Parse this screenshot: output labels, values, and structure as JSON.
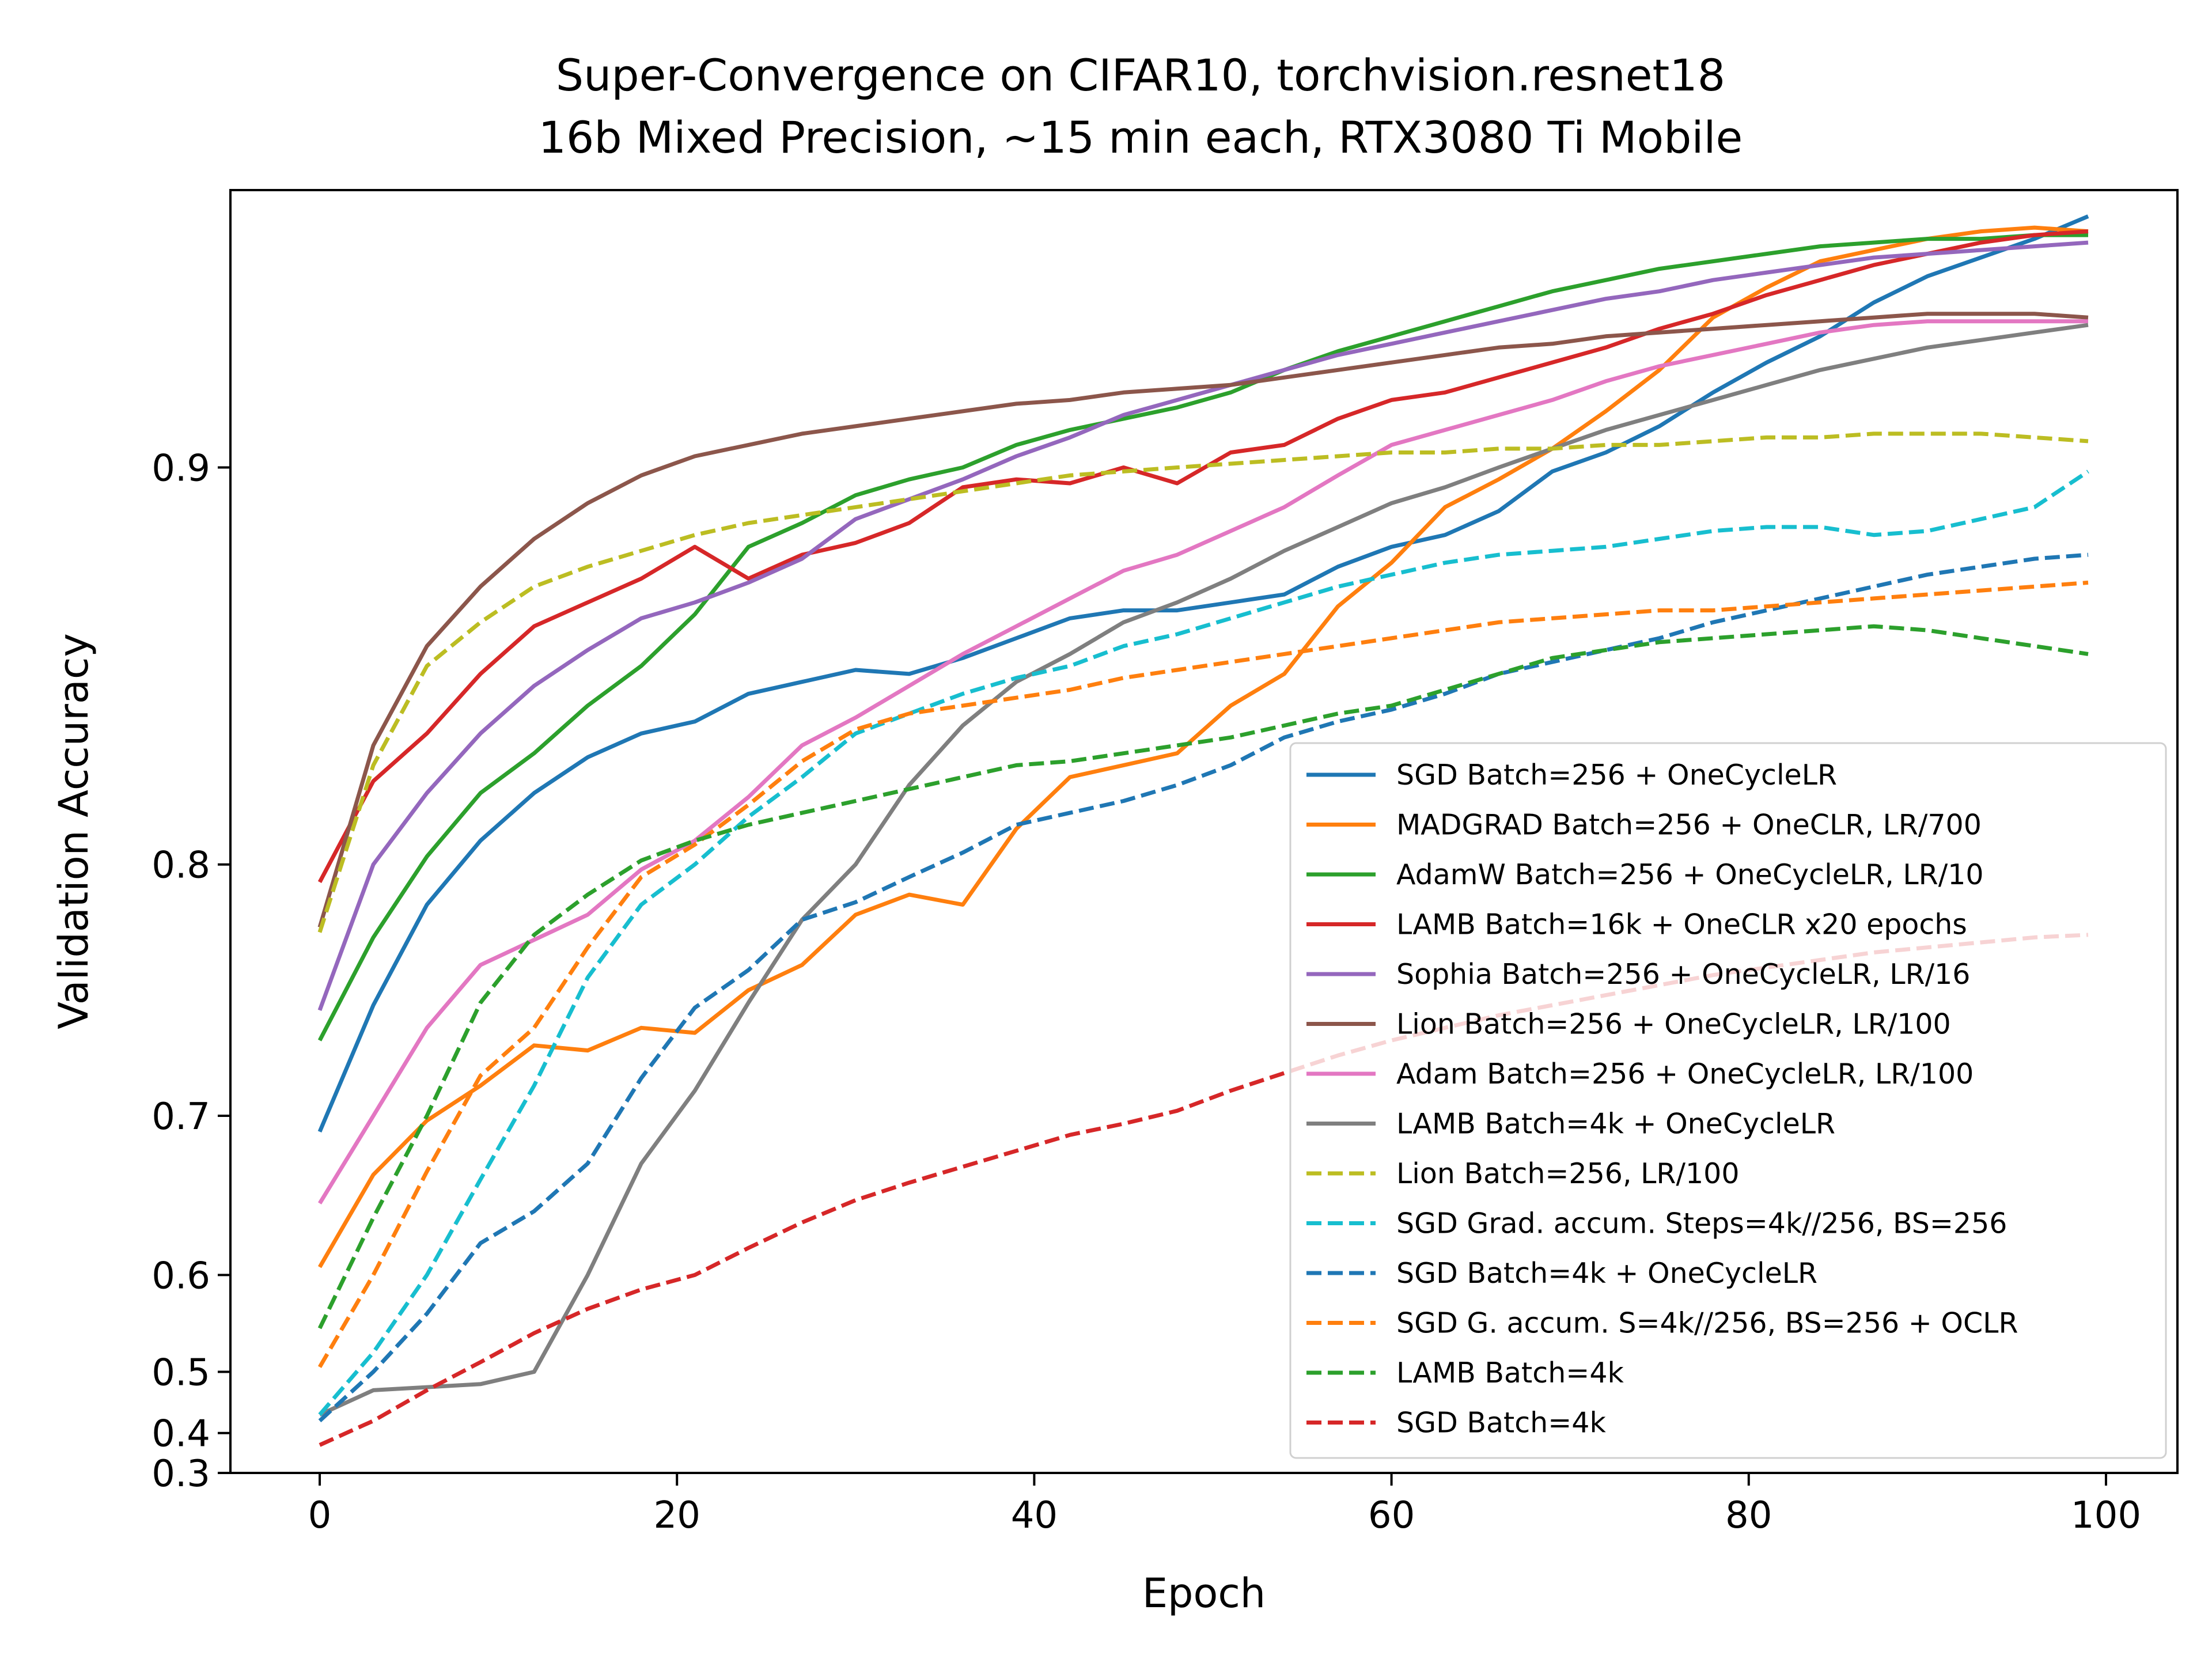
{
  "chart_data": {
    "type": "line",
    "title_lines": [
      "Super-Convergence on CIFAR10, torchvision.resnet18",
      "16b Mixed Precision, ~15 min each, RTX3080 Ti Mobile"
    ],
    "xlabel": "Epoch",
    "ylabel": "Validation Accuracy",
    "xlim": [
      -5,
      104
    ],
    "ylim": [
      0.3,
      0.974
    ],
    "y_scale": "function (axis stretched toward the top)",
    "grid": false,
    "legend_position": "lower-right",
    "x_ticks": [
      0,
      20,
      40,
      60,
      80,
      100
    ],
    "x_tick_labels": [
      "0",
      "20",
      "40",
      "60",
      "80",
      "100"
    ],
    "y_ticks": [
      0.3,
      0.4,
      0.5,
      0.6,
      0.7,
      0.8,
      0.9
    ],
    "y_tick_labels": [
      "0.3",
      "0.4",
      "0.5",
      "0.6",
      "0.7",
      "0.8",
      "0.9"
    ],
    "y_scale_anchors": [
      [
        0.3,
        0.3
      ],
      [
        0.4,
        0.4
      ],
      [
        0.5,
        0.5
      ],
      [
        0.6,
        0.6
      ],
      [
        0.7,
        0.7
      ],
      [
        0.8,
        0.8
      ],
      [
        0.9,
        0.9
      ],
      [
        0.974,
        0.974
      ]
    ],
    "y_scale_pixel_fraction": [
      0.0,
      0.0311,
      0.0788,
      0.1543,
      0.2784,
      0.4743,
      0.7838,
      1.0
    ],
    "series": [
      {
        "name": "SGD Batch=256 + OneCycleLR",
        "color": "#1f77b4",
        "dash": "solid",
        "x": [
          0,
          3,
          6,
          9,
          12,
          15,
          18,
          21,
          24,
          27,
          30,
          33,
          36,
          39,
          42,
          45,
          48,
          51,
          54,
          57,
          60,
          63,
          66,
          69,
          72,
          75,
          78,
          81,
          84,
          87,
          90,
          93,
          96,
          99
        ],
        "y": [
          0.69,
          0.744,
          0.784,
          0.806,
          0.818,
          0.827,
          0.833,
          0.836,
          0.843,
          0.846,
          0.849,
          0.848,
          0.852,
          0.857,
          0.862,
          0.864,
          0.864,
          0.866,
          0.868,
          0.875,
          0.88,
          0.883,
          0.889,
          0.899,
          0.904,
          0.911,
          0.92,
          0.928,
          0.935,
          0.944,
          0.951,
          0.956,
          0.961,
          0.967
        ]
      },
      {
        "name": "MADGRAD Batch=256 + OneCLR, LR/700",
        "color": "#ff7f0e",
        "dash": "solid",
        "x": [
          0,
          3,
          6,
          9,
          12,
          15,
          18,
          21,
          24,
          27,
          30,
          33,
          36,
          39,
          42,
          45,
          48,
          51,
          54,
          57,
          60,
          63,
          66,
          69,
          72,
          75,
          78,
          81,
          84,
          87,
          90,
          93,
          96,
          99
        ],
        "y": [
          0.605,
          0.663,
          0.697,
          0.712,
          0.728,
          0.726,
          0.735,
          0.733,
          0.75,
          0.76,
          0.78,
          0.788,
          0.784,
          0.809,
          0.822,
          0.825,
          0.828,
          0.84,
          0.848,
          0.865,
          0.876,
          0.89,
          0.897,
          0.905,
          0.915,
          0.926,
          0.94,
          0.948,
          0.955,
          0.958,
          0.961,
          0.963,
          0.964,
          0.963
        ]
      },
      {
        "name": "AdamW Batch=256 + OneCycleLR, LR/10",
        "color": "#2ca02c",
        "dash": "solid",
        "x": [
          0,
          3,
          6,
          9,
          12,
          15,
          18,
          21,
          24,
          27,
          30,
          33,
          36,
          39,
          42,
          45,
          48,
          51,
          54,
          57,
          60,
          63,
          66,
          69,
          72,
          75,
          78,
          81,
          84,
          87,
          90,
          93,
          96,
          99
        ],
        "y": [
          0.73,
          0.771,
          0.802,
          0.818,
          0.828,
          0.84,
          0.85,
          0.863,
          0.88,
          0.886,
          0.893,
          0.897,
          0.9,
          0.906,
          0.91,
          0.913,
          0.916,
          0.92,
          0.926,
          0.931,
          0.935,
          0.939,
          0.943,
          0.947,
          0.95,
          0.953,
          0.955,
          0.957,
          0.959,
          0.96,
          0.961,
          0.961,
          0.962,
          0.962
        ]
      },
      {
        "name": "LAMB Batch=16k + OneCLR x20 epochs",
        "color": "#d62728",
        "dash": "solid",
        "x": [
          0,
          3,
          6,
          9,
          12,
          15,
          18,
          21,
          24,
          27,
          30,
          33,
          36,
          39,
          42,
          45,
          48,
          51,
          54,
          57,
          60,
          63,
          66,
          69,
          72,
          75,
          78,
          81,
          84,
          87,
          90,
          93,
          96,
          99
        ],
        "y": [
          0.793,
          0.821,
          0.833,
          0.848,
          0.86,
          0.866,
          0.872,
          0.88,
          0.872,
          0.878,
          0.881,
          0.886,
          0.895,
          0.897,
          0.896,
          0.9,
          0.896,
          0.904,
          0.906,
          0.913,
          0.918,
          0.92,
          0.924,
          0.928,
          0.932,
          0.937,
          0.941,
          0.946,
          0.95,
          0.954,
          0.957,
          0.96,
          0.962,
          0.963
        ]
      },
      {
        "name": "Sophia Batch=256 + OneCycleLR, LR/16",
        "color": "#9467bd",
        "dash": "solid",
        "x": [
          0,
          3,
          6,
          9,
          12,
          15,
          18,
          21,
          24,
          27,
          30,
          33,
          36,
          39,
          42,
          45,
          48,
          51,
          54,
          57,
          60,
          63,
          66,
          69,
          72,
          75,
          78,
          81,
          84,
          87,
          90,
          93,
          96,
          99
        ],
        "y": [
          0.742,
          0.8,
          0.818,
          0.833,
          0.845,
          0.854,
          0.862,
          0.866,
          0.871,
          0.877,
          0.887,
          0.892,
          0.897,
          0.903,
          0.908,
          0.914,
          0.918,
          0.922,
          0.926,
          0.93,
          0.933,
          0.936,
          0.939,
          0.942,
          0.945,
          0.947,
          0.95,
          0.952,
          0.954,
          0.956,
          0.957,
          0.958,
          0.959,
          0.96
        ]
      },
      {
        "name": "Lion Batch=256 + OneCycleLR, LR/100",
        "color": "#8c564b",
        "dash": "solid",
        "x": [
          0,
          3,
          6,
          9,
          12,
          15,
          18,
          21,
          24,
          27,
          30,
          33,
          36,
          39,
          42,
          45,
          48,
          51,
          54,
          57,
          60,
          63,
          66,
          69,
          72,
          75,
          78,
          81,
          84,
          87,
          90,
          93,
          96,
          99
        ],
        "y": [
          0.775,
          0.83,
          0.855,
          0.87,
          0.882,
          0.891,
          0.898,
          0.903,
          0.906,
          0.909,
          0.911,
          0.913,
          0.915,
          0.917,
          0.918,
          0.92,
          0.921,
          0.922,
          0.924,
          0.926,
          0.928,
          0.93,
          0.932,
          0.933,
          0.935,
          0.936,
          0.937,
          0.938,
          0.939,
          0.94,
          0.941,
          0.941,
          0.941,
          0.94
        ]
      },
      {
        "name": "Adam Batch=256 + OneCycleLR, LR/100",
        "color": "#e377c2",
        "dash": "solid",
        "x": [
          0,
          3,
          6,
          9,
          12,
          15,
          18,
          21,
          24,
          27,
          30,
          33,
          36,
          39,
          42,
          45,
          48,
          51,
          54,
          57,
          60,
          63,
          66,
          69,
          72,
          75,
          78,
          81,
          84,
          87,
          90,
          93,
          96,
          99
        ],
        "y": [
          0.645,
          0.7,
          0.735,
          0.76,
          0.77,
          0.78,
          0.798,
          0.806,
          0.817,
          0.83,
          0.837,
          0.845,
          0.853,
          0.86,
          0.867,
          0.874,
          0.878,
          0.884,
          0.89,
          0.898,
          0.906,
          0.91,
          0.914,
          0.918,
          0.923,
          0.927,
          0.93,
          0.933,
          0.936,
          0.938,
          0.939,
          0.939,
          0.939,
          0.939
        ]
      },
      {
        "name": "LAMB Batch=4k + OneCycleLR",
        "color": "#7f7f7f",
        "dash": "solid",
        "x": [
          0,
          3,
          6,
          9,
          12,
          15,
          18,
          21,
          24,
          27,
          30,
          33,
          36,
          39,
          42,
          45,
          48,
          51,
          54,
          57,
          60,
          63,
          66,
          69,
          72,
          75,
          78,
          81,
          84,
          87,
          90,
          93,
          96,
          99
        ],
        "y": [
          0.43,
          0.47,
          0.475,
          0.48,
          0.5,
          0.6,
          0.67,
          0.71,
          0.745,
          0.778,
          0.8,
          0.82,
          0.835,
          0.846,
          0.853,
          0.861,
          0.866,
          0.872,
          0.879,
          0.885,
          0.891,
          0.895,
          0.9,
          0.905,
          0.91,
          0.914,
          0.918,
          0.922,
          0.926,
          0.929,
          0.932,
          0.934,
          0.936,
          0.938
        ]
      },
      {
        "name": "Lion Batch=256, LR/100",
        "color": "#bcbd22",
        "dash": "dashed",
        "x": [
          0,
          3,
          6,
          9,
          12,
          15,
          18,
          21,
          24,
          27,
          30,
          33,
          36,
          39,
          42,
          45,
          48,
          51,
          54,
          57,
          60,
          63,
          66,
          69,
          72,
          75,
          78,
          81,
          84,
          87,
          90,
          93,
          96,
          99
        ],
        "y": [
          0.773,
          0.825,
          0.85,
          0.861,
          0.87,
          0.875,
          0.879,
          0.883,
          0.886,
          0.888,
          0.89,
          0.892,
          0.894,
          0.896,
          0.898,
          0.899,
          0.9,
          0.901,
          0.902,
          0.903,
          0.904,
          0.904,
          0.905,
          0.905,
          0.906,
          0.906,
          0.907,
          0.908,
          0.908,
          0.909,
          0.909,
          0.909,
          0.908,
          0.907
        ]
      },
      {
        "name": "SGD Grad. accum. Steps=4k//256, BS=256",
        "color": "#17becf",
        "dash": "dashed",
        "x": [
          0,
          3,
          6,
          9,
          12,
          15,
          18,
          21,
          24,
          27,
          30,
          33,
          36,
          39,
          42,
          45,
          48,
          51,
          54,
          57,
          60,
          63,
          66,
          69,
          72,
          75,
          78,
          81,
          84,
          87,
          90,
          93,
          96,
          99
        ],
        "y": [
          0.43,
          0.52,
          0.6,
          0.66,
          0.712,
          0.755,
          0.784,
          0.8,
          0.812,
          0.822,
          0.833,
          0.838,
          0.843,
          0.847,
          0.85,
          0.855,
          0.858,
          0.862,
          0.866,
          0.87,
          0.873,
          0.876,
          0.878,
          0.879,
          0.88,
          0.882,
          0.884,
          0.885,
          0.885,
          0.883,
          0.884,
          0.887,
          0.89,
          0.899
        ]
      },
      {
        "name": "SGD Batch=4k + OneCycleLR",
        "color": "#1f77b4",
        "dash": "dashed",
        "x": [
          0,
          3,
          6,
          9,
          12,
          15,
          18,
          21,
          24,
          27,
          30,
          33,
          36,
          39,
          42,
          45,
          48,
          51,
          54,
          57,
          60,
          63,
          66,
          69,
          72,
          75,
          78,
          81,
          84,
          87,
          90,
          93,
          96,
          99
        ],
        "y": [
          0.42,
          0.5,
          0.56,
          0.62,
          0.64,
          0.67,
          0.715,
          0.743,
          0.758,
          0.778,
          0.785,
          0.795,
          0.803,
          0.81,
          0.813,
          0.816,
          0.82,
          0.825,
          0.832,
          0.836,
          0.839,
          0.843,
          0.848,
          0.851,
          0.854,
          0.857,
          0.861,
          0.864,
          0.867,
          0.87,
          0.873,
          0.875,
          0.877,
          0.878
        ]
      },
      {
        "name": "SGD G. accum. S=4k//256, BS=256 + OCLR",
        "color": "#ff7f0e",
        "dash": "dashed",
        "x": [
          0,
          3,
          6,
          9,
          12,
          15,
          18,
          21,
          24,
          27,
          30,
          33,
          36,
          39,
          42,
          45,
          48,
          51,
          54,
          57,
          60,
          63,
          66,
          69,
          72,
          75,
          78,
          81,
          84,
          87,
          90,
          93,
          96,
          99
        ],
        "y": [
          0.505,
          0.6,
          0.665,
          0.716,
          0.735,
          0.767,
          0.795,
          0.805,
          0.815,
          0.826,
          0.834,
          0.838,
          0.84,
          0.842,
          0.844,
          0.847,
          0.849,
          0.851,
          0.853,
          0.855,
          0.857,
          0.859,
          0.861,
          0.862,
          0.863,
          0.864,
          0.864,
          0.865,
          0.866,
          0.867,
          0.868,
          0.869,
          0.87,
          0.871
        ]
      },
      {
        "name": "LAMB Batch=4k",
        "color": "#2ca02c",
        "dash": "dashed",
        "x": [
          0,
          3,
          6,
          9,
          12,
          15,
          18,
          21,
          24,
          27,
          30,
          33,
          36,
          39,
          42,
          45,
          48,
          51,
          54,
          57,
          60,
          63,
          66,
          69,
          72,
          75,
          78,
          81,
          84,
          87,
          90,
          93,
          96,
          99
        ],
        "y": [
          0.545,
          0.636,
          0.7,
          0.745,
          0.772,
          0.788,
          0.801,
          0.806,
          0.81,
          0.813,
          0.816,
          0.819,
          0.822,
          0.825,
          0.826,
          0.828,
          0.83,
          0.832,
          0.835,
          0.838,
          0.84,
          0.844,
          0.848,
          0.852,
          0.854,
          0.856,
          0.857,
          0.858,
          0.859,
          0.86,
          0.859,
          0.857,
          0.855,
          0.853
        ]
      },
      {
        "name": "SGD Batch=4k",
        "color": "#d62728",
        "dash": "dashed",
        "x": [
          0,
          3,
          6,
          9,
          12,
          15,
          18,
          21,
          24,
          27,
          30,
          33,
          36,
          39,
          42,
          45,
          48,
          51,
          54,
          57,
          60,
          63,
          66,
          69,
          72,
          75,
          78,
          81,
          84,
          87,
          90,
          93,
          96,
          99
        ],
        "y": [
          0.37,
          0.42,
          0.47,
          0.51,
          0.54,
          0.565,
          0.585,
          0.6,
          0.617,
          0.633,
          0.647,
          0.658,
          0.668,
          0.678,
          0.688,
          0.695,
          0.702,
          0.71,
          0.717,
          0.724,
          0.73,
          0.735,
          0.74,
          0.744,
          0.748,
          0.752,
          0.756,
          0.759,
          0.762,
          0.765,
          0.767,
          0.769,
          0.771,
          0.772
        ]
      }
    ]
  }
}
